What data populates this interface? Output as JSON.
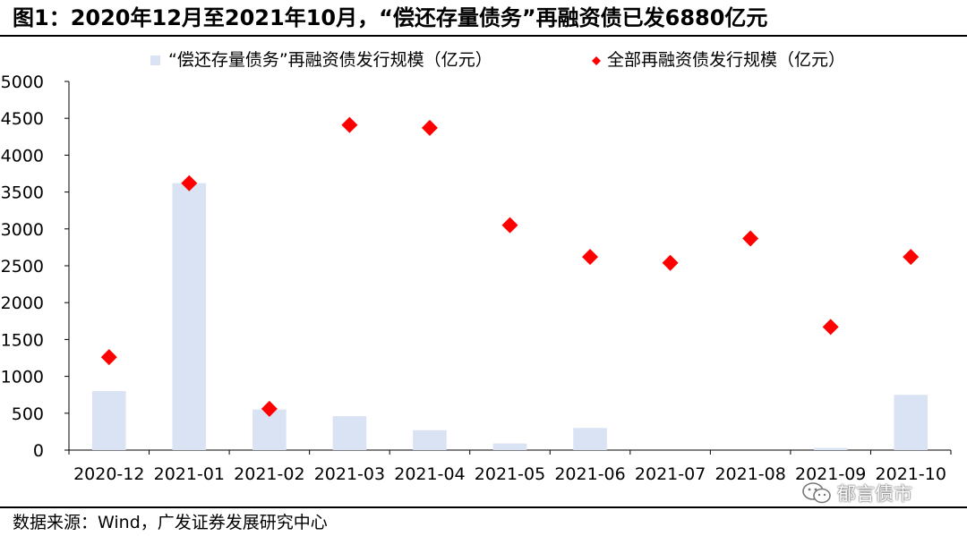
{
  "title": "图1：2020年12月至2021年10月，“偿还存量债务”再融资债已发6880亿元",
  "source": "数据来源：Wind，广发证券发展研究中心",
  "watermark": "郁言债市",
  "chart_data": {
    "type": "bar",
    "categories": [
      "2020-12",
      "2021-01",
      "2021-02",
      "2021-03",
      "2021-04",
      "2021-05",
      "2021-06",
      "2021-07",
      "2021-08",
      "2021-09",
      "2021-10"
    ],
    "ylim": [
      0,
      5000
    ],
    "yticks": [
      0,
      500,
      1000,
      1500,
      2000,
      2500,
      3000,
      3500,
      4000,
      4500,
      5000
    ],
    "legend_position": "top",
    "grid": false,
    "series": [
      {
        "name": "“偿还存量债务”再融资债发行规模（亿元）",
        "type": "bar",
        "color": "#dae3f3",
        "values": [
          800,
          3620,
          550,
          460,
          270,
          90,
          300,
          0,
          0,
          30,
          750
        ]
      },
      {
        "name": "全部再融资债发行规模（亿元）",
        "type": "scatter",
        "marker": "diamond",
        "color": "#ff0000",
        "values": [
          1260,
          3620,
          560,
          4410,
          4370,
          3050,
          2620,
          2540,
          2870,
          1670,
          2620
        ]
      }
    ]
  }
}
